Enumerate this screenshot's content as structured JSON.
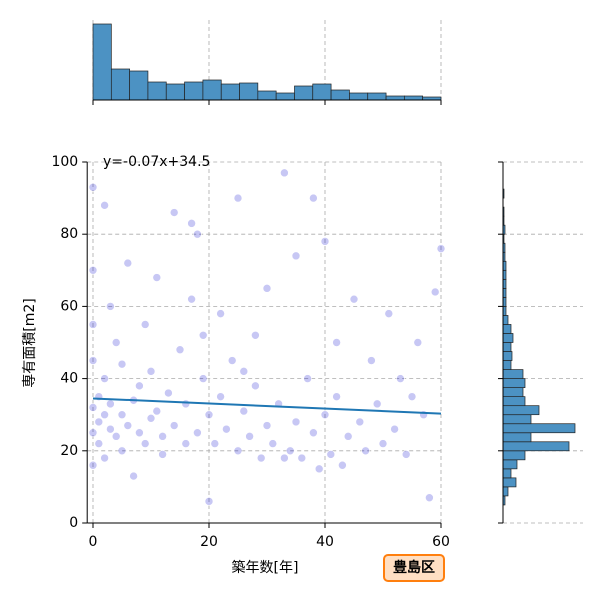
{
  "chart_data": [
    {
      "type": "scatter",
      "xlabel": "築年数[年]",
      "ylabel": "専有面積[m2]",
      "annotation": "y=-0.07x+34.5",
      "annotation_color": "#0000cc",
      "label_box": "豊島区",
      "label_box_color": "#ff7f0e",
      "fit": {
        "slope": -0.07,
        "intercept": 34.5,
        "color": "#1f77b4"
      },
      "xlim": [
        -1,
        60
      ],
      "ylim": [
        0,
        100
      ],
      "xticks": [
        0,
        20,
        40,
        60
      ],
      "yticks": [
        0,
        20,
        40,
        60,
        80,
        100
      ],
      "grid": true,
      "series": [
        {
          "color": "#0000cc",
          "x": [
            0,
            0,
            0,
            0,
            0,
            0,
            0,
            1,
            1,
            1,
            2,
            2,
            2,
            3,
            3,
            3,
            4,
            4,
            5,
            5,
            5,
            6,
            6,
            7,
            7,
            8,
            8,
            9,
            9,
            10,
            10,
            11,
            11,
            12,
            12,
            13,
            14,
            14,
            15,
            16,
            16,
            17,
            18,
            18,
            19,
            20,
            20,
            21,
            22,
            22,
            23,
            24,
            25,
            25,
            26,
            27,
            28,
            28,
            29,
            30,
            30,
            31,
            32,
            33,
            34,
            35,
            35,
            36,
            37,
            38,
            38,
            39,
            40,
            40,
            41,
            42,
            42,
            43,
            44,
            45,
            46,
            47,
            48,
            49,
            50,
            51,
            52,
            53,
            54,
            55,
            56,
            57,
            58,
            59,
            60,
            19,
            33,
            17,
            26,
            2
          ],
          "y": [
            93,
            16,
            25,
            32,
            45,
            55,
            70,
            35,
            22,
            28,
            40,
            18,
            30,
            26,
            60,
            33,
            24,
            50,
            30,
            20,
            44,
            27,
            72,
            34,
            13,
            25,
            38,
            22,
            55,
            29,
            42,
            31,
            68,
            24,
            19,
            36,
            27,
            86,
            48,
            22,
            33,
            62,
            25,
            80,
            40,
            30,
            6,
            22,
            35,
            58,
            26,
            45,
            20,
            90,
            31,
            24,
            38,
            52,
            18,
            27,
            65,
            22,
            33,
            97,
            20,
            28,
            74,
            18,
            40,
            25,
            90,
            15,
            30,
            78,
            19,
            50,
            35,
            16,
            24,
            62,
            28,
            20,
            45,
            33,
            22,
            58,
            26,
            40,
            19,
            35,
            50,
            30,
            7,
            64,
            76,
            52,
            18,
            83,
            42,
            88
          ]
        }
      ]
    },
    {
      "type": "histogram",
      "orientation": "vertical",
      "color": "#4c92c3",
      "xlim": [
        -1,
        60
      ],
      "ylim": [
        0,
        80
      ],
      "xticks": [
        0,
        20,
        40,
        60
      ],
      "grid": true,
      "bins": [
        0,
        3.16,
        6.32,
        9.47,
        12.63,
        15.79,
        18.95,
        22.11,
        25.26,
        28.42,
        31.58,
        34.74,
        37.89,
        41.05,
        44.21,
        47.37,
        50.53,
        53.68,
        56.84,
        60
      ],
      "values": [
        76,
        31,
        29,
        18,
        16,
        18,
        20,
        16,
        17,
        9,
        7,
        14,
        16,
        10,
        7,
        7,
        4,
        4,
        3
      ]
    },
    {
      "type": "histogram",
      "orientation": "horizontal",
      "color": "#4c92c3",
      "xlim": [
        0,
        80
      ],
      "ylim": [
        0,
        100
      ],
      "yticks": [
        0,
        20,
        40,
        60,
        80,
        100
      ],
      "grid": true,
      "bins": [
        0,
        2.5,
        5,
        7.5,
        10,
        12.5,
        15,
        17.5,
        20,
        22.5,
        25,
        27.5,
        30,
        32.5,
        35,
        37.5,
        40,
        42.5,
        45,
        47.5,
        50,
        52.5,
        55,
        57.5,
        60,
        62.5,
        65,
        67.5,
        70,
        72.5,
        75,
        77.5,
        80,
        82.5,
        85,
        87.5,
        90,
        92.5,
        95,
        97.5,
        100
      ],
      "values": [
        0,
        0,
        2,
        5,
        13,
        8,
        14,
        22,
        66,
        28,
        72,
        28,
        36,
        22,
        20,
        22,
        20,
        8,
        9,
        8,
        10,
        8,
        5,
        3,
        3,
        3,
        3,
        3,
        3,
        2,
        2,
        1,
        2,
        1,
        1,
        0,
        1,
        0,
        0,
        0
      ]
    }
  ]
}
